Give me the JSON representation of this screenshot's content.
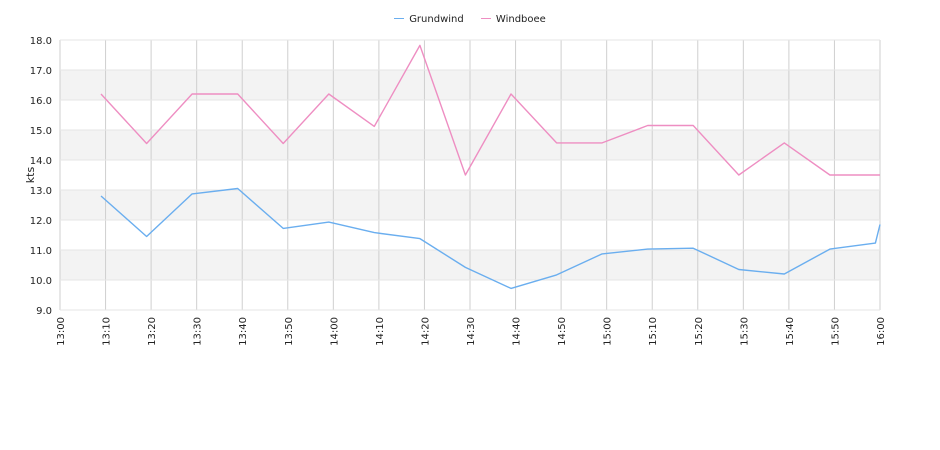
{
  "chart_data": {
    "type": "line",
    "title": "",
    "xlabel": "",
    "ylabel": "kts",
    "x": [
      "13:00",
      "13:10",
      "13:20",
      "13:30",
      "13:40",
      "13:50",
      "14:00",
      "14:10",
      "14:20",
      "14:30",
      "14:40",
      "14:50",
      "15:00",
      "15:10",
      "15:20",
      "15:30",
      "15:40",
      "15:50",
      "16:00"
    ],
    "ylim": [
      9.0,
      18.0
    ],
    "yticks": [
      "9.0",
      "10.0",
      "11.0",
      "12.0",
      "13.0",
      "14.0",
      "15.0",
      "16.0",
      "17.0",
      "18.0"
    ],
    "grid": true,
    "legend_position": "top-center",
    "series": [
      {
        "name": "Grundwind",
        "color": "#6aaeef",
        "points": [
          [
            "13:09",
            12.8
          ],
          [
            "13:19",
            11.45
          ],
          [
            "13:29",
            12.87
          ],
          [
            "13:39",
            13.05
          ],
          [
            "13:49",
            11.72
          ],
          [
            "13:59",
            11.93
          ],
          [
            "14:09",
            11.58
          ],
          [
            "14:19",
            11.38
          ],
          [
            "14:29",
            10.42
          ],
          [
            "14:39",
            9.72
          ],
          [
            "14:49",
            10.17
          ],
          [
            "14:59",
            10.87
          ],
          [
            "15:09",
            11.03
          ],
          [
            "15:19",
            11.06
          ],
          [
            "15:29",
            10.35
          ],
          [
            "15:39",
            10.2
          ],
          [
            "15:49",
            11.03
          ],
          [
            "15:59",
            11.23
          ],
          [
            "16:00",
            11.85
          ]
        ]
      },
      {
        "name": "Windboee",
        "color": "#ee8ec2",
        "points": [
          [
            "13:09",
            16.2
          ],
          [
            "13:19",
            14.55
          ],
          [
            "13:29",
            16.2
          ],
          [
            "13:39",
            16.2
          ],
          [
            "13:49",
            14.55
          ],
          [
            "13:59",
            16.2
          ],
          [
            "14:09",
            15.12
          ],
          [
            "14:19",
            17.82
          ],
          [
            "14:29",
            13.5
          ],
          [
            "14:39",
            16.2
          ],
          [
            "14:49",
            14.57
          ],
          [
            "14:59",
            14.57
          ],
          [
            "15:09",
            15.15
          ],
          [
            "15:19",
            15.15
          ],
          [
            "15:29",
            13.5
          ],
          [
            "15:39",
            14.57
          ],
          [
            "15:49",
            13.5
          ],
          [
            "15:59",
            13.5
          ],
          [
            "16:00",
            13.5
          ]
        ]
      }
    ]
  }
}
